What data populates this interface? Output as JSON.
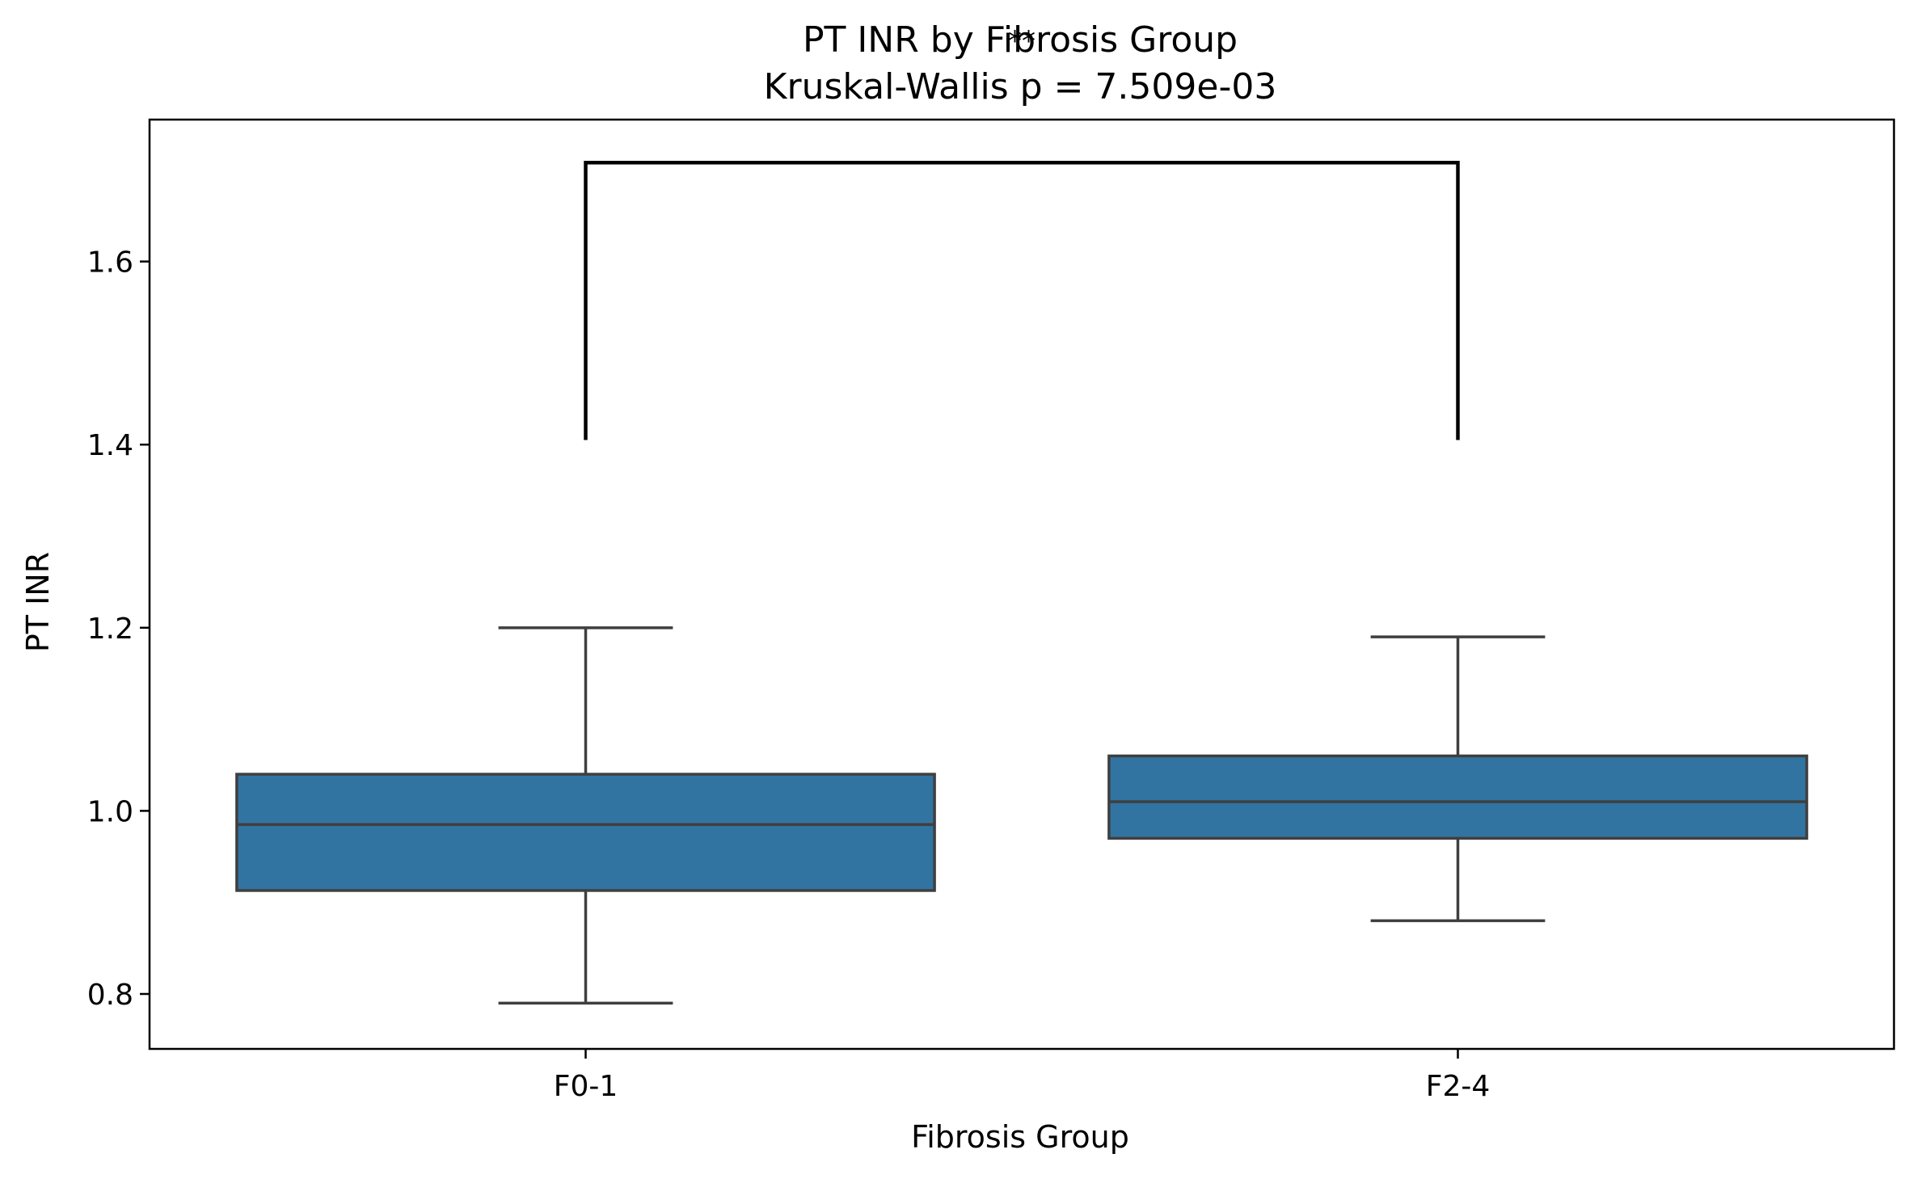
{
  "chart_data": {
    "type": "box",
    "title": "PT INR by Fibrosis Group",
    "subtitle": "Kruskal-Wallis p = 7.509e-03",
    "xlabel": "Fibrosis Group",
    "ylabel": "PT INR",
    "categories": [
      "F0-1",
      "F2-4"
    ],
    "ylim": [
      0.74,
      1.755
    ],
    "yticks": [
      0.8,
      1.0,
      1.2,
      1.4,
      1.6
    ],
    "ytick_labels": [
      "0.8",
      "1.0",
      "1.2",
      "1.4",
      "1.6"
    ],
    "boxes": [
      {
        "category": "F0-1",
        "whisker_low": 0.79,
        "q1": 0.913,
        "median": 0.985,
        "q3": 1.04,
        "whisker_high": 1.2
      },
      {
        "category": "F2-4",
        "whisker_low": 0.88,
        "q1": 0.97,
        "median": 1.01,
        "q3": 1.06,
        "whisker_high": 1.19
      }
    ],
    "significance": {
      "from": "F0-1",
      "to": "F2-4",
      "y_low": 1.405,
      "y_high": 1.708,
      "label": "**"
    },
    "colors": {
      "box_fill": "#3274a1",
      "box_edge": "#3f3f3f",
      "bracket": "#000000",
      "axes": "#000000"
    },
    "grid": false,
    "legend": "none"
  }
}
